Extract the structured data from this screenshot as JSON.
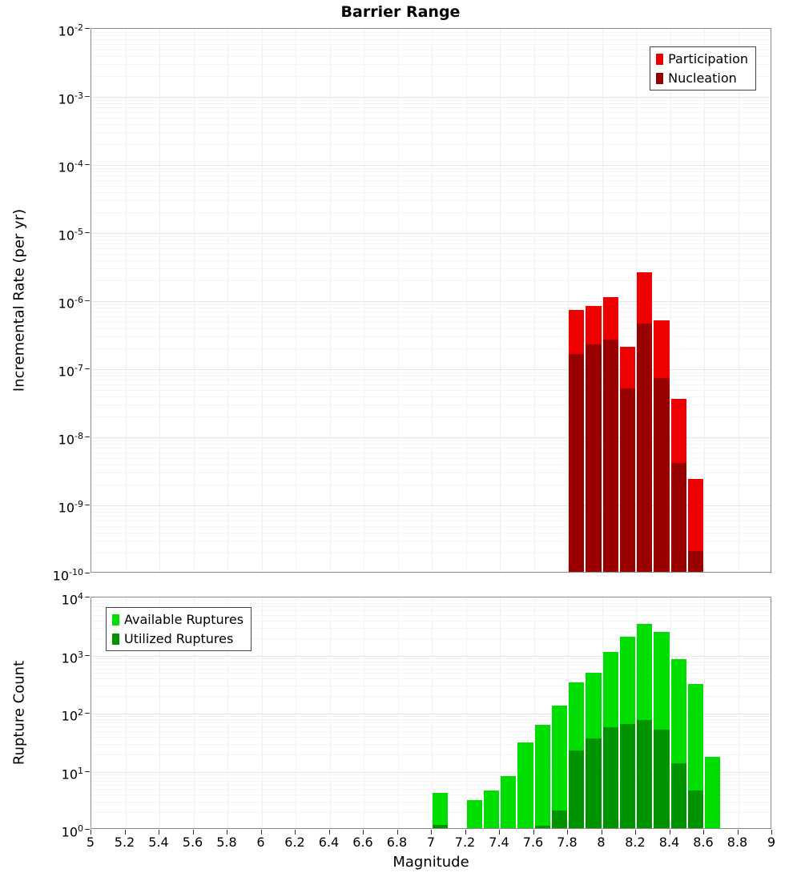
{
  "title": "Barrier Range",
  "axes": {
    "x_label": "Magnitude",
    "x_min": 5,
    "x_max": 9,
    "x_tick_step": 0.2,
    "x_tick_labels": [
      "5",
      "5.2",
      "5.4",
      "5.6",
      "5.8",
      "6",
      "6.2",
      "6.4",
      "6.6",
      "6.8",
      "7",
      "7.2",
      "7.4",
      "7.6",
      "7.8",
      "8",
      "8.2",
      "8.4",
      "8.6",
      "8.8",
      "9"
    ],
    "top_y_label": "Incremental Rate (per yr)",
    "bottom_y_label": "Rupture Count"
  },
  "colors": {
    "participation": "#ee0000",
    "nucleation": "#990000",
    "available": "#00dd00",
    "utilized": "#009300",
    "grid_major": "#e5e5e5",
    "grid_minor": "#f4f4f4",
    "plot_border": "#8a8a8a",
    "background": "#ffffff"
  },
  "chart_data": [
    {
      "type": "bar",
      "panel": "top",
      "title": "Barrier Range",
      "ylabel": "Incremental Rate (per yr)",
      "xlabel": "Magnitude",
      "xlim": [
        5,
        9
      ],
      "ylim": [
        1e-10,
        0.01
      ],
      "y_scale": "log",
      "grid": true,
      "bin_width": 0.1,
      "legend_position": "upper right",
      "categories": [
        7.8,
        7.9,
        8.0,
        8.1,
        8.2,
        8.3,
        8.4,
        8.5
      ],
      "series": [
        {
          "name": "Participation",
          "color": "#ee0000",
          "values": [
            7e-07,
            8e-07,
            1.1e-06,
            2e-07,
            2.5e-06,
            5e-07,
            3.5e-08,
            2.3e-09
          ]
        },
        {
          "name": "Nucleation",
          "color": "#990000",
          "values": [
            1.6e-07,
            2.2e-07,
            2.6e-07,
            5e-08,
            4.5e-07,
            7e-08,
            4e-09,
            2e-10
          ]
        }
      ]
    },
    {
      "type": "bar",
      "panel": "bottom",
      "title": "",
      "ylabel": "Rupture Count",
      "xlabel": "Magnitude",
      "xlim": [
        5,
        9
      ],
      "ylim": [
        1,
        10000
      ],
      "y_scale": "log",
      "grid": true,
      "bin_width": 0.1,
      "legend_position": "upper left",
      "categories": [
        7.0,
        7.2,
        7.3,
        7.4,
        7.5,
        7.6,
        7.7,
        7.8,
        7.9,
        8.0,
        8.1,
        8.2,
        8.3,
        8.4,
        8.5,
        8.6
      ],
      "series": [
        {
          "name": "Available Ruptures",
          "color": "#00dd00",
          "values": [
            4,
            3,
            4.5,
            8,
            30,
            60,
            130,
            320,
            480,
            1100,
            2000,
            3300,
            2400,
            820,
            300,
            17
          ]
        },
        {
          "name": "Utilized Ruptures",
          "color": "#009300",
          "values": [
            1.15,
            0,
            0,
            0,
            0,
            1.1,
            2,
            22,
            35,
            55,
            62,
            72,
            50,
            13,
            4.5,
            0
          ]
        }
      ]
    }
  ]
}
